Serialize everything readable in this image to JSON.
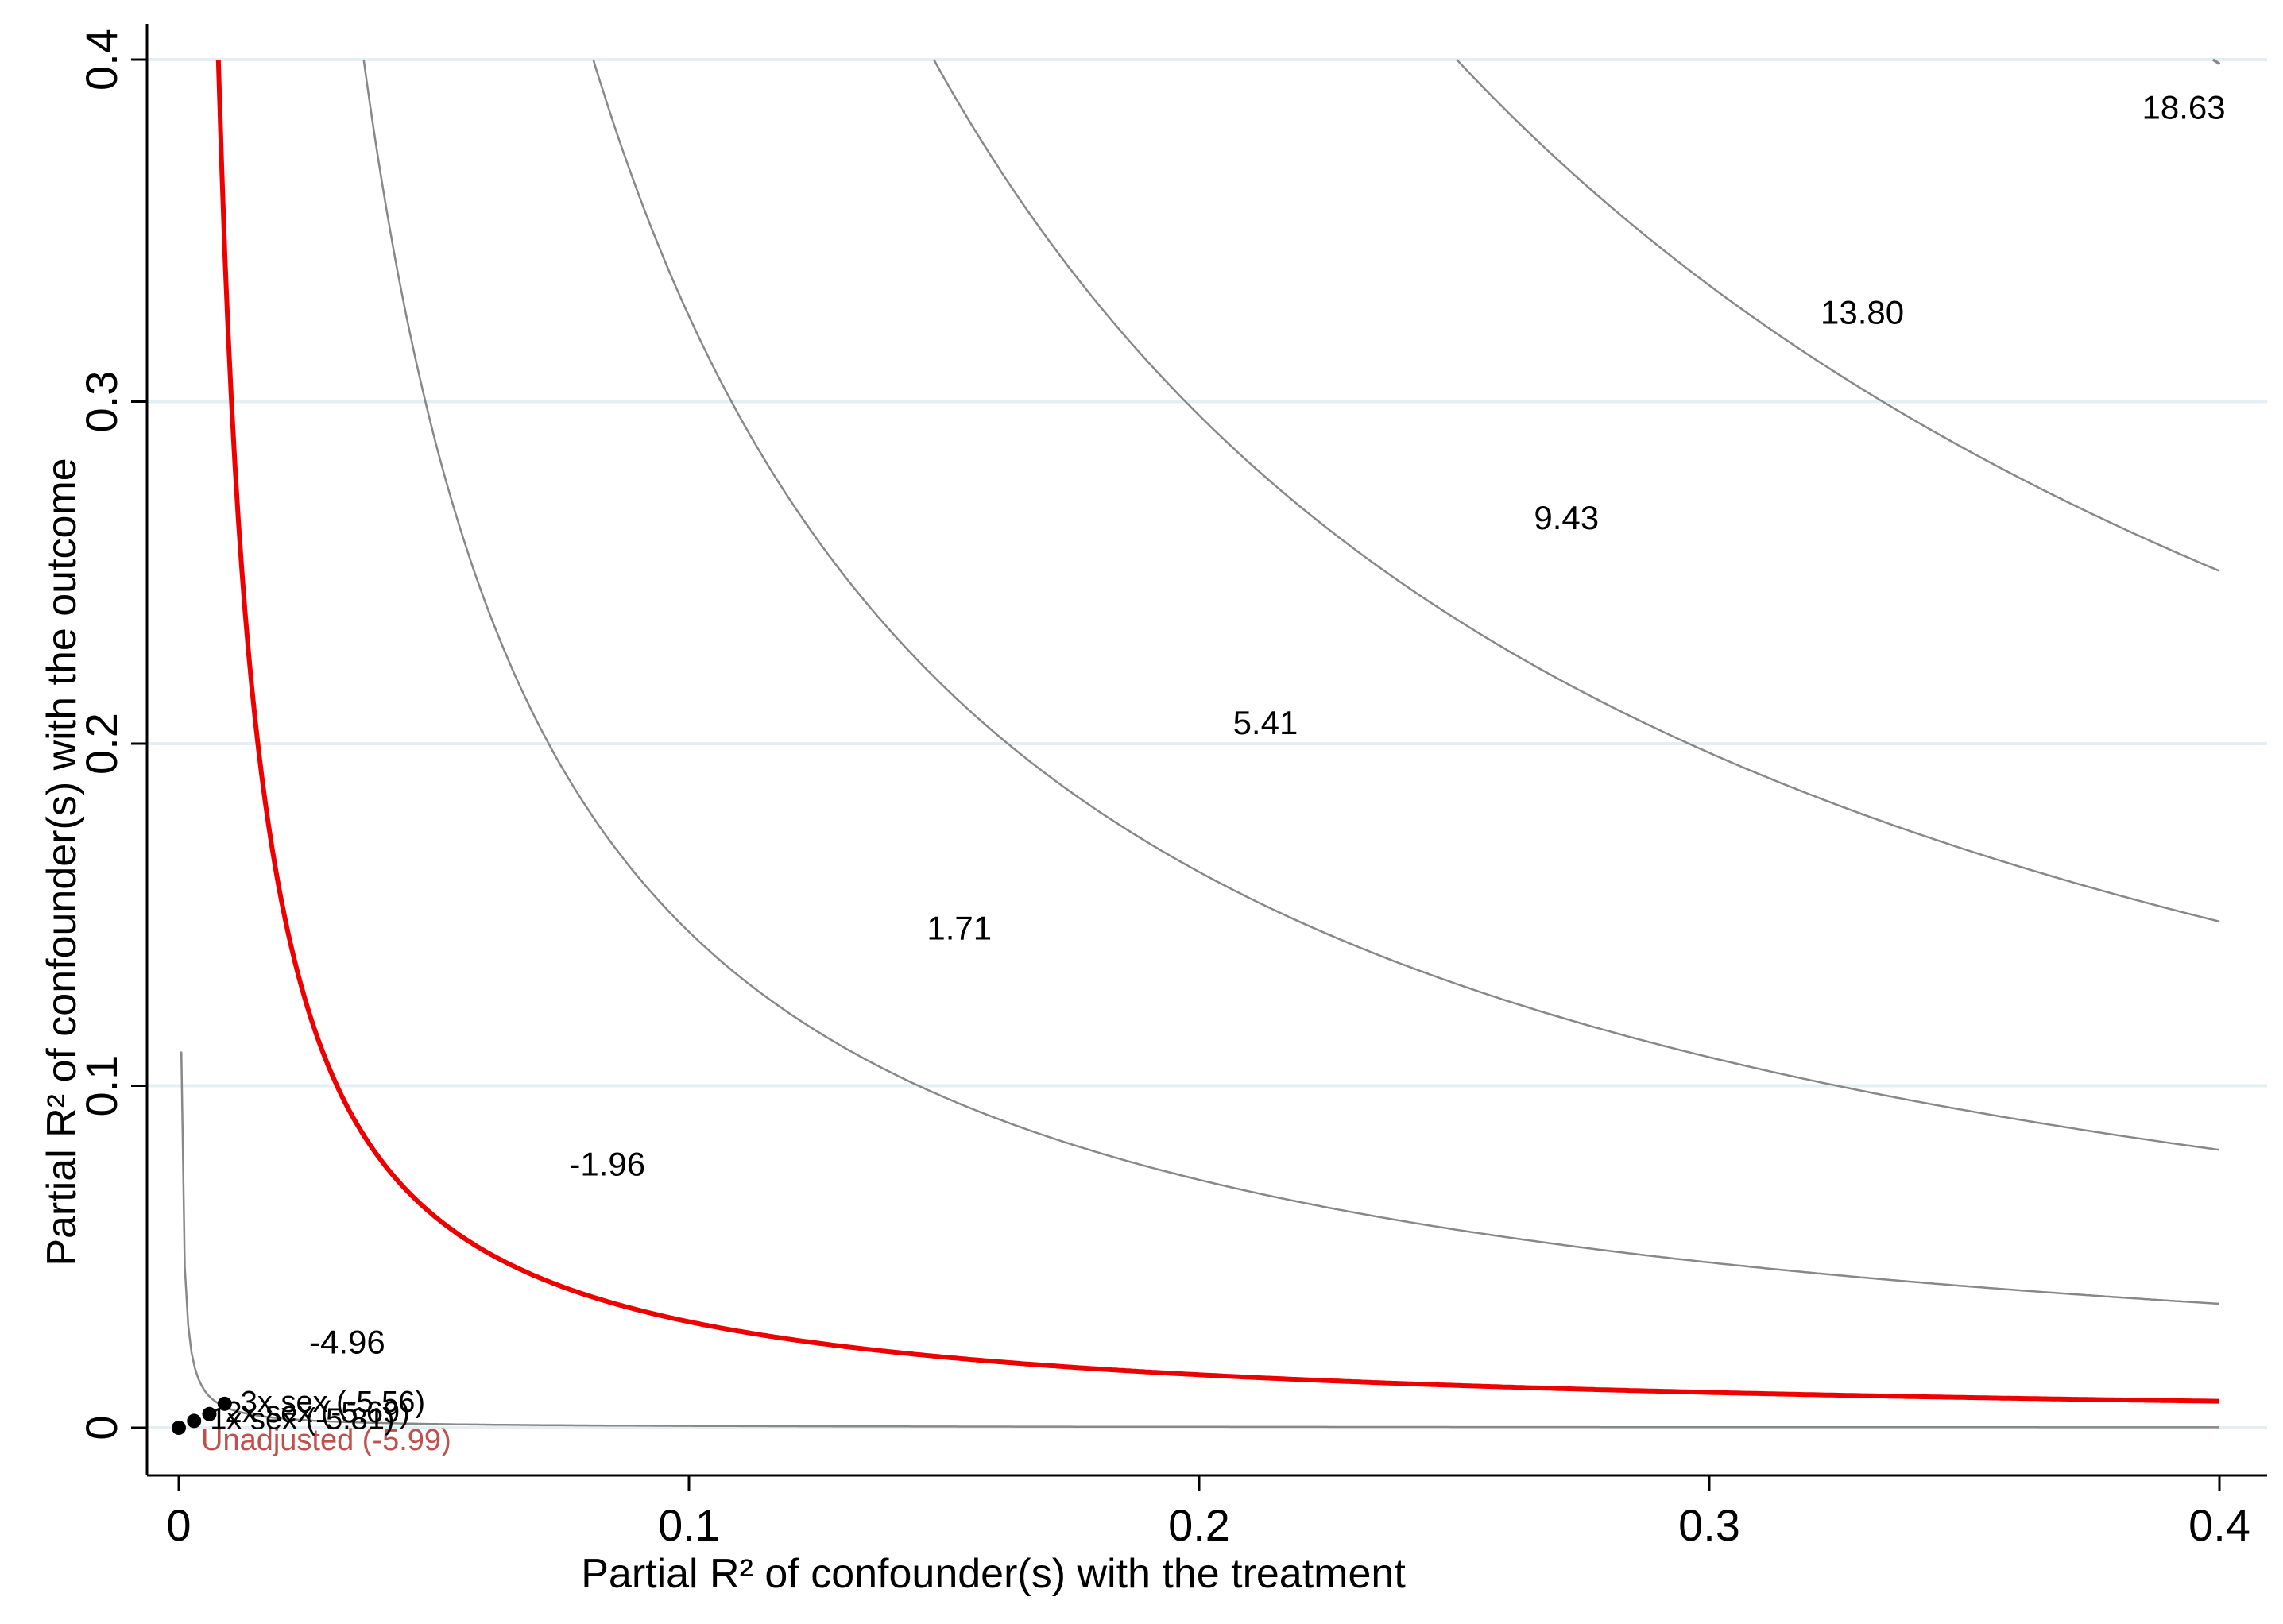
{
  "chart_data": {
    "type": "contour",
    "xlabel": "Partial R² of confounder(s) with the treatment",
    "ylabel": "Partial R² of confounder(s) with the outcome",
    "xlim": [
      0,
      0.4
    ],
    "ylim": [
      0,
      0.4
    ],
    "x_ticks": [
      0,
      0.1,
      0.2,
      0.3,
      0.4
    ],
    "x_tick_labels": [
      "0",
      "0.1",
      "0.2",
      "0.3",
      "0.4"
    ],
    "y_ticks": [
      0,
      0.1,
      0.2,
      0.3,
      0.4
    ],
    "y_tick_labels": [
      "0",
      "0.1",
      "0.2",
      "0.3",
      "0.4"
    ],
    "grid": "horizontal",
    "contours": [
      {
        "label": "-4.96",
        "color": "#888888",
        "k": 5.5e-05,
        "label_at": [
          0.033,
          0.025
        ]
      },
      {
        "label": "-1.96",
        "color": "#ee0000",
        "threshold": true,
        "k": 0.0031,
        "label_at": [
          0.084,
          0.077
        ]
      },
      {
        "label": "1.71",
        "color": "#888888",
        "k": 0.0145,
        "label_at": [
          0.153,
          0.146
        ]
      },
      {
        "label": "5.41",
        "color": "#888888",
        "k": 0.0325,
        "label_at": [
          0.213,
          0.206
        ]
      },
      {
        "label": "9.43",
        "color": "#888888",
        "k": 0.0592,
        "label_at": [
          0.272,
          0.266
        ]
      },
      {
        "label": "13.80",
        "color": "#888888",
        "k": 0.1002,
        "label_at": [
          0.33,
          0.326
        ]
      },
      {
        "label": "18.63",
        "color": "#888888",
        "k": 0.1595,
        "label_at": [
          0.393,
          0.386
        ]
      }
    ],
    "unadjusted": {
      "x": 0.0,
      "y": 0.0,
      "label": "Unadjusted (-5.99)",
      "color": "#c0504d"
    },
    "bounds": [
      {
        "x": 0.003,
        "y": 0.002,
        "label": "1x sex (-5.81)"
      },
      {
        "x": 0.006,
        "y": 0.004,
        "label": "2x sex (-5.69)"
      },
      {
        "x": 0.009,
        "y": 0.007,
        "label": "3x sex (-5.56)"
      }
    ]
  }
}
